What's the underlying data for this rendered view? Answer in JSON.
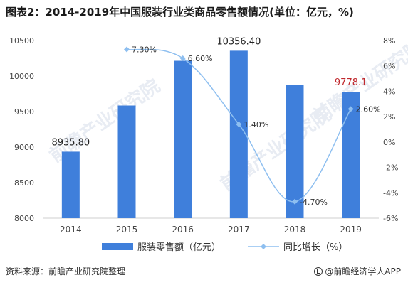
{
  "title": "图表2：2014-2019年中国服装行业类商品零售额情况(单位：亿元，%)",
  "source": "资料来源：前瞻产业研究院整理",
  "brand": "@前瞻经济学人APP",
  "watermark": "前瞻产业研究院",
  "colors": {
    "bar": "#3f7fdb",
    "line": "#8ebff0",
    "highlight": "#c0282d"
  },
  "chart_data": {
    "type": "bar",
    "categories": [
      "2014",
      "2015",
      "2016",
      "2017",
      "2018",
      "2019"
    ],
    "series": [
      {
        "name": "服装零售额（亿元）",
        "type": "bar",
        "axis": "left",
        "values": [
          8935.8,
          9585,
          10215,
          10356.4,
          9872,
          9778.1
        ],
        "data_labels": [
          "8935.80",
          "",
          "",
          "10356.40",
          "",
          "9778.1"
        ]
      },
      {
        "name": "同比增长（%）",
        "type": "line",
        "axis": "right",
        "values": [
          null,
          7.3,
          6.6,
          1.4,
          -4.7,
          2.6
        ],
        "data_labels": [
          "",
          "7.30%",
          "6.60%",
          "1.40%",
          "-4.70%",
          "2.60%"
        ]
      }
    ],
    "y_left": {
      "min": 8000,
      "max": 10500,
      "ticks": [
        "8000",
        "8500",
        "9000",
        "9500",
        "10000",
        "10500"
      ]
    },
    "y_right": {
      "min": -6,
      "max": 8,
      "ticks": [
        "-6%",
        "-4%",
        "-2%",
        "0%",
        "2%",
        "4%",
        "6%",
        "8%"
      ]
    },
    "legend_position": "bottom",
    "grid": false
  }
}
